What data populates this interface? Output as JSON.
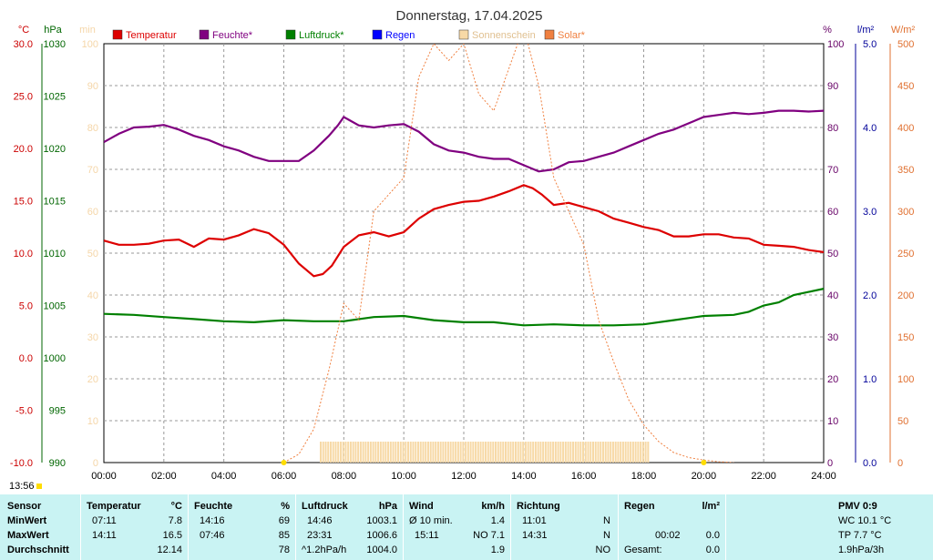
{
  "title": "Donnerstag, 17.04.2025",
  "axes": {
    "temp": {
      "unit": "°C",
      "ticks": [
        "30.0",
        "25.0",
        "20.0",
        "15.0",
        "10.0",
        "5.0",
        "0.0",
        "-5.0",
        "-10.0"
      ],
      "color": "#cc0000"
    },
    "press": {
      "unit": "hPa",
      "ticks": [
        "1030",
        "1025",
        "1020",
        "1015",
        "1010",
        "1005",
        "1000",
        "995",
        "990"
      ],
      "color": "#006600"
    },
    "sun": {
      "unit": "min",
      "ticks": [
        "100",
        "90",
        "80",
        "70",
        "60",
        "50",
        "40",
        "30",
        "20",
        "10",
        "0"
      ],
      "color": "#f5d6a8"
    },
    "hum": {
      "unit": "%",
      "ticks": [
        "100",
        "90",
        "80",
        "70",
        "60",
        "50",
        "40",
        "30",
        "20",
        "10",
        "0"
      ],
      "color": "#660066"
    },
    "rain": {
      "unit": "l/m²",
      "ticks": [
        "5.0",
        "4.0",
        "3.0",
        "2.0",
        "1.0",
        "0.0"
      ],
      "color": "#000099"
    },
    "solar": {
      "unit": "W/m²",
      "ticks": [
        "500",
        "450",
        "400",
        "350",
        "300",
        "250",
        "200",
        "150",
        "100",
        "50",
        "0"
      ],
      "color": "#e07030"
    },
    "x_ticks": [
      "00:00",
      "02:00",
      "04:00",
      "06:00",
      "08:00",
      "10:00",
      "12:00",
      "14:00",
      "16:00",
      "18:00",
      "20:00",
      "22:00",
      "24:00"
    ]
  },
  "legend": [
    {
      "label": "Temperatur",
      "color": "#dd0000"
    },
    {
      "label": "Feuchte*",
      "color": "#800080"
    },
    {
      "label": "Luftdruck*",
      "color": "#008000"
    },
    {
      "label": "Regen",
      "color": "#0000ff"
    },
    {
      "label": "Sonnenschein",
      "color": "#f7d9a6"
    },
    {
      "label": "Solar*",
      "color": "#f08040"
    }
  ],
  "time_label": "13:56",
  "chart_data": {
    "type": "line",
    "x_unit": "hours",
    "xlim": [
      0,
      24
    ],
    "series": [
      {
        "name": "Temperatur",
        "unit": "°C",
        "ylim": [
          -10,
          30
        ],
        "color": "#dd0000",
        "x": [
          0,
          0.5,
          1,
          1.5,
          2,
          2.5,
          3,
          3.5,
          4,
          4.5,
          5,
          5.5,
          6,
          6.5,
          7,
          7.3,
          7.6,
          8,
          8.5,
          9,
          9.5,
          10,
          10.5,
          11,
          11.5,
          12,
          12.5,
          13,
          13.5,
          14,
          14.3,
          14.6,
          15,
          15.5,
          16,
          16.5,
          17,
          17.5,
          18,
          18.5,
          19,
          19.5,
          20,
          20.5,
          21,
          21.5,
          22,
          22.5,
          23,
          23.5,
          24
        ],
        "y": [
          11.2,
          10.8,
          10.8,
          10.9,
          11.2,
          11.3,
          10.6,
          11.4,
          11.3,
          11.7,
          12.3,
          11.9,
          10.8,
          9.0,
          7.8,
          8.0,
          8.8,
          10.6,
          11.7,
          12.0,
          11.6,
          12.0,
          13.3,
          14.2,
          14.6,
          14.9,
          15.0,
          15.4,
          15.9,
          16.5,
          16.2,
          15.6,
          14.6,
          14.8,
          14.4,
          14.0,
          13.3,
          12.9,
          12.5,
          12.2,
          11.6,
          11.6,
          11.8,
          11.8,
          11.5,
          11.4,
          10.8,
          10.7,
          10.6,
          10.3,
          10.1
        ]
      },
      {
        "name": "Feuchte*",
        "unit": "%",
        "ylim": [
          0,
          100
        ],
        "color": "#800080",
        "x": [
          0,
          0.5,
          1,
          1.5,
          2,
          2.5,
          3,
          3.5,
          4,
          4.5,
          5,
          5.5,
          6,
          6.5,
          7,
          7.5,
          7.8,
          8,
          8.5,
          9,
          9.5,
          10,
          10.5,
          11,
          11.5,
          12,
          12.5,
          13,
          13.5,
          14,
          14.5,
          15,
          15.5,
          16,
          16.5,
          17,
          17.5,
          18,
          18.5,
          19,
          19.5,
          20,
          20.5,
          21,
          21.5,
          22,
          22.5,
          23,
          23.5,
          24
        ],
        "y": [
          76.5,
          78.5,
          80,
          80.2,
          80.6,
          79.5,
          78,
          77,
          75.5,
          74.5,
          73,
          72,
          72,
          72,
          74.5,
          78,
          80.5,
          82.5,
          80.5,
          80,
          80.5,
          80.8,
          79,
          76,
          74.5,
          74,
          73,
          72.5,
          72.5,
          71,
          69.5,
          70,
          71.7,
          72,
          73,
          74,
          75.5,
          77,
          78.5,
          79.5,
          81,
          82.5,
          83,
          83.5,
          83.2,
          83.5,
          84,
          84,
          83.8,
          84
        ]
      },
      {
        "name": "Luftdruck*",
        "unit": "hPa",
        "ylim": [
          990,
          1030
        ],
        "color": "#008000",
        "x": [
          0,
          1,
          2,
          3,
          4,
          5,
          6,
          7,
          8,
          9,
          10,
          11,
          12,
          13,
          14,
          15,
          16,
          17,
          18,
          19,
          20,
          21,
          21.5,
          22,
          22.5,
          23,
          23.5,
          24
        ],
        "y": [
          1004.2,
          1004.1,
          1003.9,
          1003.7,
          1003.5,
          1003.4,
          1003.6,
          1003.5,
          1003.5,
          1003.9,
          1004.0,
          1003.6,
          1003.4,
          1003.4,
          1003.1,
          1003.2,
          1003.1,
          1003.1,
          1003.2,
          1003.6,
          1004.0,
          1004.1,
          1004.4,
          1005.0,
          1005.3,
          1006.0,
          1006.3,
          1006.6
        ]
      },
      {
        "name": "Solar*",
        "unit": "W/m²",
        "ylim": [
          0,
          500
        ],
        "color": "#f08040",
        "x": [
          6,
          6.5,
          7,
          7.5,
          8,
          8.5,
          9,
          9.5,
          10,
          10.5,
          11,
          11.5,
          12,
          12.5,
          13,
          13.5,
          14,
          14.5,
          15,
          15.5,
          16,
          16.5,
          17,
          17.5,
          18,
          18.5,
          19,
          19.5,
          20,
          20.5,
          21
        ],
        "y": [
          0,
          10,
          40,
          110,
          190,
          170,
          300,
          320,
          340,
          460,
          500,
          480,
          500,
          440,
          420,
          470,
          520,
          450,
          340,
          300,
          260,
          170,
          120,
          75,
          45,
          25,
          12,
          6,
          3,
          1,
          0
        ]
      },
      {
        "name": "Sonnenschein",
        "unit": "min",
        "ylim": [
          0,
          100
        ],
        "color": "#f7d9a6",
        "x": [
          7.2,
          18.2
        ],
        "y": [
          5,
          5
        ]
      }
    ]
  },
  "stats": {
    "headers": {
      "sensor": "Sensor",
      "temp": "Temperatur",
      "temp_unit": "°C",
      "hum": "Feuchte",
      "hum_unit": "%",
      "press": "Luftdruck",
      "press_unit": "hPa",
      "wind": "Wind",
      "wind_unit": "km/h",
      "dir": "Richtung",
      "rain": "Regen",
      "rain_unit": "l/m²",
      "pmv": "PMV 0:9"
    },
    "rows": [
      {
        "label": "MinWert",
        "temp_time": "07:11",
        "temp_val": "7.8",
        "hum_time": "14:16",
        "hum_val": "69",
        "press_time": "14:46",
        "press_val": "1003.1",
        "wind_time": "Ø 10 min.",
        "wind_val": "1.4",
        "dir_time": "11:01",
        "dir_val": "N",
        "rain_time": "",
        "rain_val": "",
        "pmv": "WC 10.1 °C"
      },
      {
        "label": "MaxWert",
        "temp_time": "14:11",
        "temp_val": "16.5",
        "hum_time": "07:46",
        "hum_val": "85",
        "press_time": "23:31",
        "press_val": "1006.6",
        "wind_time": "15:11",
        "wind_val": "NO 7.1",
        "dir_time": "14:31",
        "dir_val": "N",
        "rain_time": "00:02",
        "rain_val": "0.0",
        "pmv": "TP 7.7 °C"
      },
      {
        "label": "Durchschnitt",
        "temp_time": "",
        "temp_val": "12.14",
        "hum_time": "",
        "hum_val": "78",
        "press_time": "^1.2hPa/h",
        "press_val": "1004.0",
        "wind_time": "",
        "wind_val": "1.9",
        "dir_time": "",
        "dir_val": "NO",
        "rain_time": "Gesamt:",
        "rain_val": "0.0",
        "pmv": "1.9hPa/3h"
      }
    ]
  }
}
